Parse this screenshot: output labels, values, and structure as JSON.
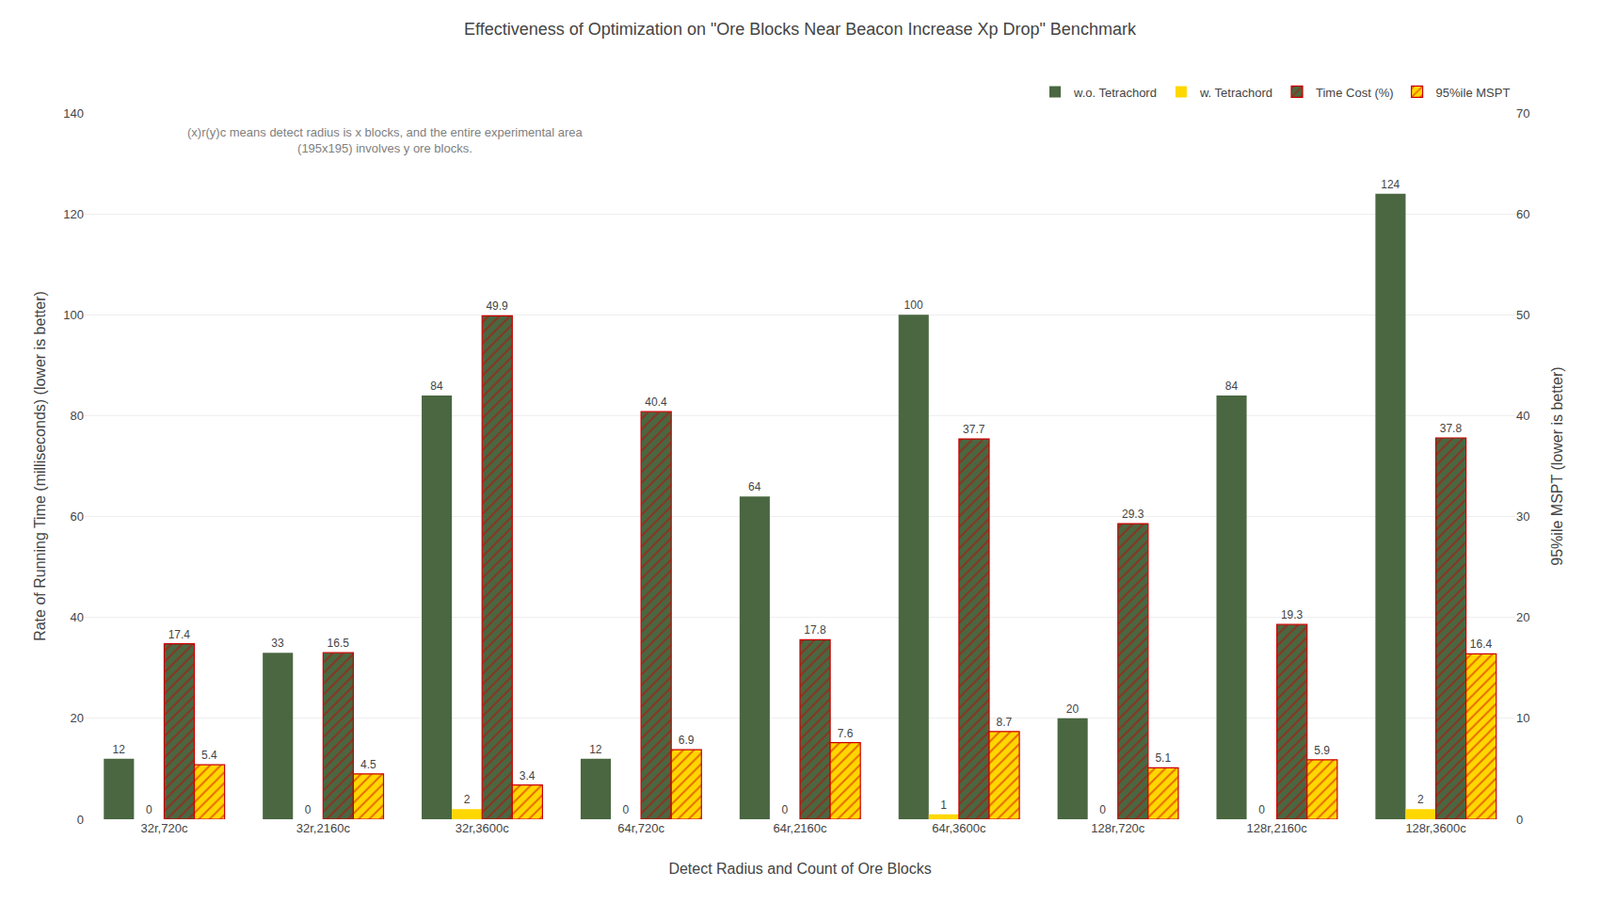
{
  "chart_data": {
    "type": "bar",
    "title": "Effectiveness of Optimization on \"Ore Blocks Near Beacon Increase Xp Drop\" Benchmark",
    "xlabel": "Detect Radius and Count of Ore Blocks",
    "ylabel": "Rate of Running Time (milliseconds) (lower is better)",
    "y2label": "95%ile MSPT (lower is better)",
    "annotation": "(x)r(y)c means detect radius is x blocks, and the entire experimental area\n(195x195) involves y ore blocks.",
    "categories": [
      "32r,720c",
      "32r,2160c",
      "32r,3600c",
      "64r,720c",
      "64r,2160c",
      "64r,3600c",
      "128r,720c",
      "128r,2160c",
      "128r,3600c"
    ],
    "series": [
      {
        "name": "w.o. Tetrachord",
        "color": "#4a6741",
        "values": [
          12,
          33,
          84,
          12,
          64,
          100,
          20,
          84,
          124
        ]
      },
      {
        "name": "w. Tetrachord",
        "color": "#ffd700",
        "values": [
          0,
          0,
          2,
          0,
          0,
          1,
          0,
          0,
          2
        ]
      },
      {
        "name": "Time Cost (%)",
        "color": "#4a6741",
        "marker": "hatch",
        "axis": "y2",
        "values": [
          17.4,
          16.5,
          49.9,
          40.4,
          17.8,
          37.7,
          29.3,
          19.3,
          37.8
        ]
      },
      {
        "name": "95%ile MSPT",
        "color": "#ffd700",
        "marker": "hatch",
        "axis": "y2",
        "values": [
          5.4,
          4.5,
          3.4,
          6.9,
          7.6,
          8.7,
          5.1,
          5.9,
          16.4
        ]
      }
    ],
    "ylim": [
      0,
      140
    ],
    "yticks": [
      0,
      20,
      40,
      60,
      80,
      100,
      120,
      140
    ],
    "y2lim": [
      0,
      70
    ],
    "y2ticks": [
      0,
      10,
      20,
      30,
      40,
      50,
      60,
      70
    ],
    "grid": true,
    "legend": "upper right",
    "data_labels": true
  }
}
